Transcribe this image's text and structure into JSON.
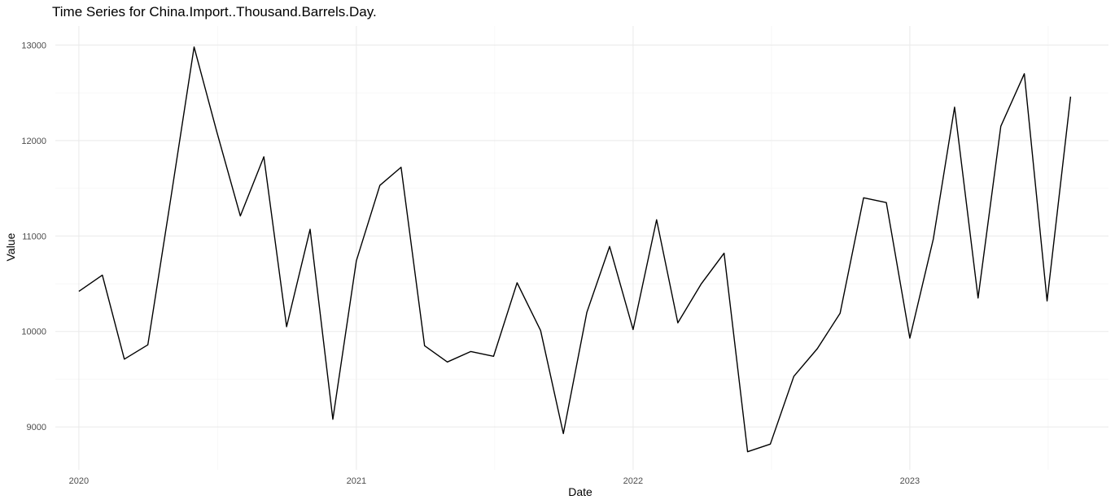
{
  "chart_data": {
    "type": "line",
    "title": "Time Series for China.Import..Thousand.Barrels.Day.",
    "xlabel": "Date",
    "ylabel": "Value",
    "xlim": [
      "2019-12-01",
      "2023-09-20"
    ],
    "ylim": [
      8550,
      13200
    ],
    "x_ticks": [
      "2020",
      "2021",
      "2022",
      "2023"
    ],
    "y_ticks": [
      9000,
      10000,
      11000,
      12000,
      13000
    ],
    "grid": true,
    "series": [
      {
        "x": [
          "2020-01-01",
          "2020-02-01",
          "2020-03-01",
          "2020-04-01",
          "2020-05-01",
          "2020-06-01",
          "2020-07-01",
          "2020-08-01",
          "2020-09-01",
          "2020-10-01",
          "2020-11-01",
          "2020-12-01",
          "2021-01-01",
          "2021-02-01",
          "2021-03-01",
          "2021-04-01",
          "2021-05-01",
          "2021-06-01",
          "2021-07-01",
          "2021-08-01",
          "2021-09-01",
          "2021-10-01",
          "2021-11-01",
          "2021-12-01",
          "2022-01-01",
          "2022-02-01",
          "2022-03-01",
          "2022-04-01",
          "2022-05-01",
          "2022-06-01",
          "2022-07-01",
          "2022-08-01",
          "2022-09-01",
          "2022-10-01",
          "2022-11-01",
          "2022-12-01",
          "2023-01-01",
          "2023-02-01",
          "2023-03-01",
          "2023-04-01",
          "2023-05-01",
          "2023-06-01",
          "2023-07-01",
          "2023-08-01"
        ],
        "values": [
          10420,
          10590,
          9710,
          9860,
          11380,
          12980,
          12090,
          11210,
          11830,
          10050,
          11070,
          9080,
          10740,
          11530,
          11720,
          9850,
          9680,
          9790,
          9740,
          10510,
          10010,
          8930,
          10200,
          10890,
          10020,
          11170,
          10090,
          10500,
          10820,
          8740,
          8820,
          9530,
          9820,
          10190,
          11400,
          11350,
          9930,
          10970,
          12350,
          10350,
          12150,
          12700,
          10320,
          12460
        ]
      }
    ]
  }
}
